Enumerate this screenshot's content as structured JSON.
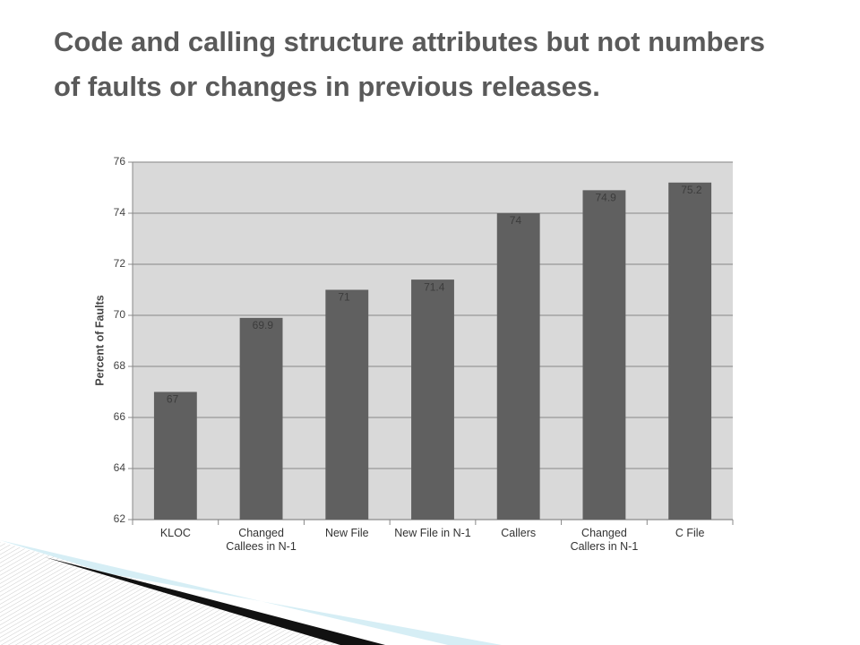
{
  "title": "Code and calling structure attributes but not numbers of faults or changes in previous releases.",
  "chart_data": {
    "type": "bar",
    "y_label": "Percent of Faults",
    "categories": [
      "KLOC",
      "Changed Callees in N-1",
      "New File",
      "New File in N-1",
      "Callers",
      "Changed Callers in N-1",
      "C File"
    ],
    "values": [
      67,
      69.9,
      71,
      71.4,
      74,
      74.9,
      75.2
    ],
    "color": "#606060",
    "ylim": [
      62,
      76
    ],
    "yticks": [
      62,
      64,
      66,
      68,
      70,
      72,
      74,
      76
    ],
    "grid": true
  }
}
